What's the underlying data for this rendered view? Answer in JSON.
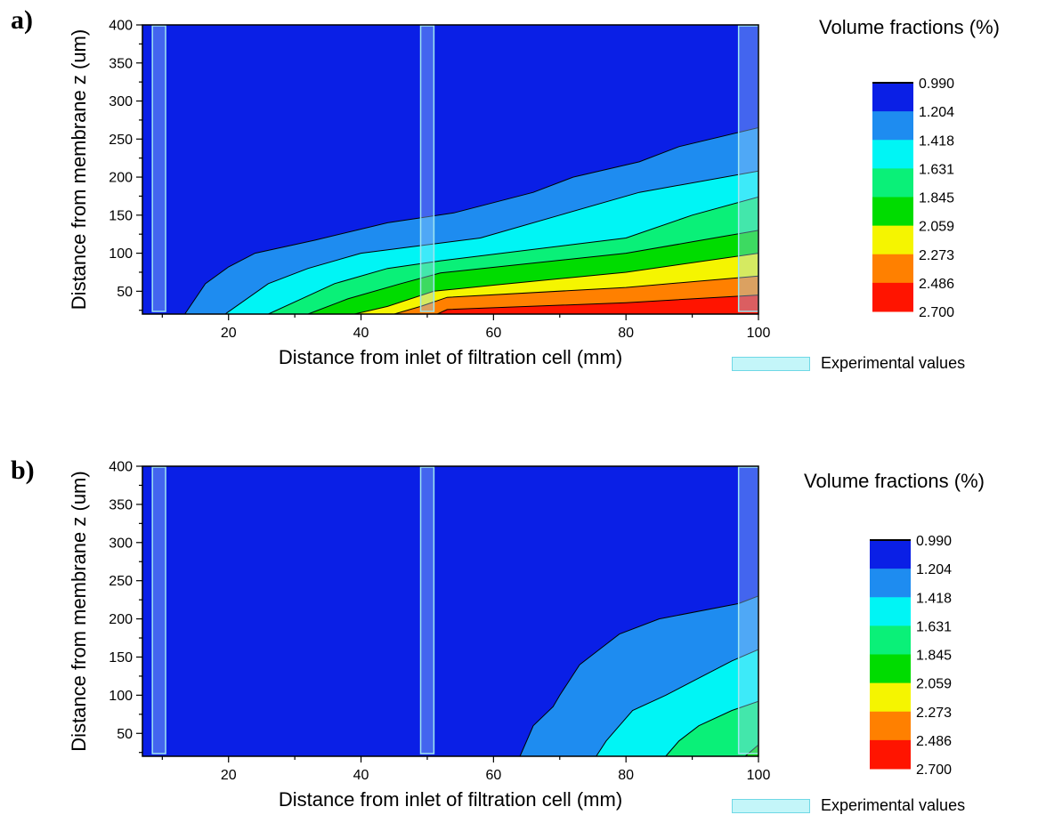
{
  "chart_data": [
    {
      "type": "contour",
      "panel_label": "a)",
      "xlabel": "Distance from inlet of filtration cell (mm)",
      "ylabel": "Distance from membrane z (um)",
      "xlim": [
        7,
        100
      ],
      "ylim": [
        20,
        400
      ],
      "xticks": [
        20,
        40,
        60,
        80,
        100
      ],
      "yticks": [
        50,
        100,
        150,
        200,
        250,
        300,
        350,
        400
      ],
      "colorbar_title": "Volume fractions (%)",
      "levels": [
        "0.990",
        "1.204",
        "1.418",
        "1.631",
        "1.845",
        "2.059",
        "2.273",
        "2.486",
        "2.700"
      ],
      "level_colors": [
        "#0a1fe6",
        "#1e8cf0",
        "#00f5f5",
        "#0af078",
        "#00dc00",
        "#f5f500",
        "#ff8000",
        "#ff1400"
      ],
      "contour_lines": [
        {
          "level": "1.204",
          "points": [
            [
              13.4,
              20
            ],
            [
              16.5,
              60
            ],
            [
              20,
              82
            ],
            [
              24,
              100
            ],
            [
              33,
              117
            ],
            [
              44,
              140
            ],
            [
              54,
              153
            ],
            [
              66,
              180
            ],
            [
              72,
              200
            ],
            [
              82,
              220
            ],
            [
              88,
              240
            ],
            [
              100,
              265
            ]
          ]
        },
        {
          "level": "1.418",
          "points": [
            [
              19.5,
              20
            ],
            [
              26,
              60
            ],
            [
              32,
              80
            ],
            [
              40,
              100
            ],
            [
              58,
              120
            ],
            [
              70,
              150
            ],
            [
              82,
              180
            ],
            [
              100,
              208
            ]
          ]
        },
        {
          "level": "1.631",
          "points": [
            [
              26,
              20
            ],
            [
              31,
              40
            ],
            [
              36,
              60
            ],
            [
              44,
              80
            ],
            [
              52,
              90
            ],
            [
              80,
              120
            ],
            [
              90,
              150
            ],
            [
              100,
              174
            ]
          ]
        },
        {
          "level": "1.845",
          "points": [
            [
              32,
              20
            ],
            [
              38,
              40
            ],
            [
              46,
              60
            ],
            [
              52,
              74
            ],
            [
              80,
              100
            ],
            [
              90,
              115
            ],
            [
              100,
              130
            ]
          ]
        },
        {
          "level": "2.059",
          "points": [
            [
              39,
              20
            ],
            [
              44,
              30
            ],
            [
              51,
              50
            ],
            [
              60,
              58
            ],
            [
              80,
              75
            ],
            [
              100,
              100
            ]
          ]
        },
        {
          "level": "2.273",
          "points": [
            [
              45,
              20
            ],
            [
              49,
              30
            ],
            [
              53,
              42
            ],
            [
              80,
              55
            ],
            [
              100,
              70
            ]
          ]
        },
        {
          "level": "2.486",
          "points": [
            [
              51.5,
              20
            ],
            [
              53,
              26
            ],
            [
              80,
              35
            ],
            [
              100,
              45
            ]
          ]
        }
      ],
      "experimental_bands": [
        {
          "x0": 8.5,
          "x1": 10.5
        },
        {
          "x0": 49,
          "x1": 51
        },
        {
          "x0": 97,
          "x1": 100
        }
      ],
      "experimental_legend": "Experimental values"
    },
    {
      "type": "contour",
      "panel_label": "b)",
      "xlabel": "Distance from inlet of filtration cell (mm)",
      "ylabel": "Distance from membrane z (um)",
      "xlim": [
        7,
        100
      ],
      "ylim": [
        20,
        400
      ],
      "xticks": [
        20,
        40,
        60,
        80,
        100
      ],
      "yticks": [
        50,
        100,
        150,
        200,
        250,
        300,
        350,
        400
      ],
      "colorbar_title": "Volume fractions (%)",
      "levels": [
        "0.990",
        "1.204",
        "1.418",
        "1.631",
        "1.845",
        "2.059",
        "2.273",
        "2.486",
        "2.700"
      ],
      "level_colors": [
        "#0a1fe6",
        "#1e8cf0",
        "#00f5f5",
        "#0af078",
        "#00dc00",
        "#f5f500",
        "#ff8000",
        "#ff1400"
      ],
      "contour_lines": [
        {
          "level": "1.204",
          "points": [
            [
              64,
              20
            ],
            [
              66,
              60
            ],
            [
              69,
              85
            ],
            [
              70,
              100
            ],
            [
              73,
              140
            ],
            [
              76,
              160
            ],
            [
              79,
              180
            ],
            [
              85,
              200
            ],
            [
              97,
              220
            ],
            [
              100,
              230
            ]
          ]
        },
        {
          "level": "1.418",
          "points": [
            [
              75.5,
              20
            ],
            [
              77,
              40
            ],
            [
              79,
              60
            ],
            [
              81,
              80
            ],
            [
              86,
              100
            ],
            [
              96,
              145
            ],
            [
              100,
              160
            ]
          ]
        },
        {
          "level": "1.631",
          "points": [
            [
              86,
              20
            ],
            [
              88,
              40
            ],
            [
              91,
              60
            ],
            [
              96,
              80
            ],
            [
              100,
              92
            ]
          ]
        },
        {
          "level": "1.845",
          "points": [
            [
              98,
              20
            ],
            [
              100,
              35
            ]
          ]
        }
      ],
      "experimental_bands": [
        {
          "x0": 8.5,
          "x1": 10.5
        },
        {
          "x0": 49,
          "x1": 51
        },
        {
          "x0": 97,
          "x1": 100
        }
      ],
      "experimental_legend": "Experimental values"
    }
  ]
}
